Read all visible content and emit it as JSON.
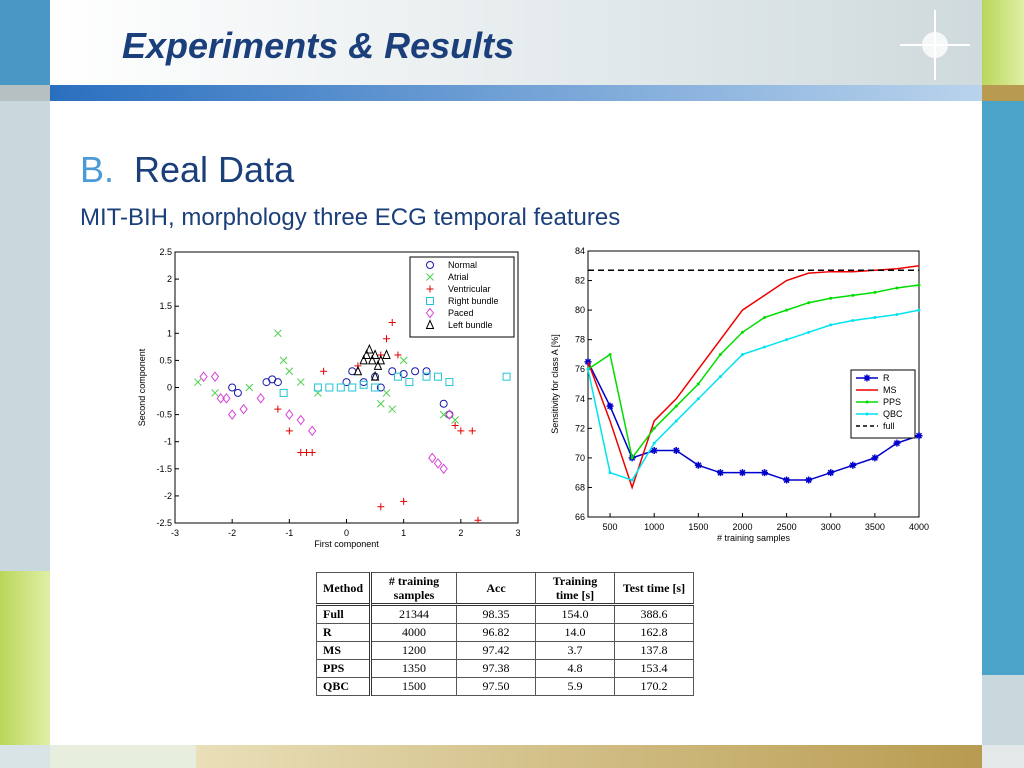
{
  "slide": {
    "title": "Experiments & Results",
    "section_number": "B.",
    "section_title": "Real Data",
    "subtitle": "MIT-BIH, morphology three ECG temporal features"
  },
  "chart_data": [
    {
      "type": "scatter",
      "x_label": "First component",
      "y_label": "Second component",
      "xlim": [
        -3,
        3
      ],
      "xticks": [
        -3,
        -2,
        -1,
        0,
        1,
        2,
        3
      ],
      "ylim": [
        -2.5,
        2.5
      ],
      "yticks": [
        2.5,
        2,
        1.5,
        1,
        0.5,
        0,
        -0.5,
        -1,
        -1.5,
        -2,
        -2.5
      ],
      "grid": false,
      "legend": "upper right",
      "series": [
        {
          "name": "Normal",
          "color": "#1a1aa8",
          "marker": "circle",
          "x": [
            -2.0,
            -1.9,
            -1.4,
            -1.3,
            -1.2,
            0,
            0.1,
            0.3,
            0.5,
            0.6,
            0.8,
            1.0,
            1.2,
            1.4,
            1.7,
            1.8
          ],
          "y": [
            0,
            -0.1,
            0.1,
            0.15,
            0.1,
            0.1,
            0.3,
            0.1,
            0.2,
            0,
            0.3,
            0.25,
            0.3,
            0.3,
            -0.3,
            -0.5
          ]
        },
        {
          "name": "Atrial",
          "color": "#4ccf4c",
          "marker": "x",
          "x": [
            -2.6,
            -2.3,
            -1.7,
            -1.2,
            -1.1,
            -1.0,
            -0.8,
            -0.5,
            0.6,
            0.7,
            0.8,
            1.0,
            1.7,
            1.9
          ],
          "y": [
            0.1,
            -0.1,
            0,
            1.0,
            0.5,
            0.3,
            0.1,
            -0.1,
            -0.3,
            -0.1,
            -0.4,
            0.5,
            -0.5,
            -0.6
          ]
        },
        {
          "name": "Ventricular",
          "color": "#e00000",
          "marker": "plus",
          "x": [
            -1.2,
            -1.0,
            -0.8,
            -0.7,
            -0.6,
            -0.4,
            0.2,
            0.6,
            0.7,
            0.8,
            0.9,
            0.6,
            1.0,
            1.9,
            2.0,
            2.2,
            2.3
          ],
          "y": [
            -0.4,
            -0.8,
            -1.2,
            -1.2,
            -1.2,
            0.3,
            0.4,
            0.6,
            0.9,
            1.2,
            0.6,
            -2.2,
            -2.1,
            -0.7,
            -0.8,
            -0.8,
            -2.45
          ]
        },
        {
          "name": "Right bundle",
          "color": "#22c4d4",
          "marker": "square",
          "x": [
            -1.1,
            -0.5,
            -0.3,
            -0.1,
            0.1,
            0.3,
            0.5,
            0.9,
            1.1,
            1.4,
            1.6,
            1.8,
            2.8
          ],
          "y": [
            -0.1,
            0,
            0,
            0,
            0,
            0.05,
            0,
            0.2,
            0.1,
            0.2,
            0.2,
            0.1,
            0.2
          ]
        },
        {
          "name": "Paced",
          "color": "#d844d8",
          "marker": "diamond",
          "x": [
            -2.5,
            -2.3,
            -2.2,
            -2.1,
            -2.0,
            -1.8,
            -1.5,
            -1.0,
            -0.8,
            -0.6,
            1.5,
            1.6,
            1.7,
            1.8
          ],
          "y": [
            0.2,
            0.2,
            -0.2,
            -0.2,
            -0.5,
            -0.4,
            -0.2,
            -0.5,
            -0.6,
            -0.8,
            -1.3,
            -1.4,
            -1.5,
            -0.5
          ]
        },
        {
          "name": "Left bundle",
          "color": "#000000",
          "marker": "triangle",
          "x": [
            0.2,
            0.3,
            0.35,
            0.4,
            0.45,
            0.5,
            0.55,
            0.6,
            0.7,
            0.5
          ],
          "y": [
            0.3,
            0.5,
            0.6,
            0.7,
            0.5,
            0.6,
            0.4,
            0.5,
            0.6,
            0.2
          ]
        }
      ]
    },
    {
      "type": "line",
      "x_label": "# training samples",
      "y_label": "Sensitivity for class A [%]",
      "xlim": [
        250,
        4000
      ],
      "xticks": [
        500,
        1000,
        1500,
        2000,
        2500,
        3000,
        3500,
        4000
      ],
      "ylim": [
        66,
        84
      ],
      "yticks": [
        66,
        68,
        70,
        72,
        74,
        76,
        78,
        80,
        82,
        84
      ],
      "grid": false,
      "legend": "center right",
      "x": [
        250,
        500,
        750,
        1000,
        1250,
        1500,
        1750,
        2000,
        2250,
        2500,
        2750,
        3000,
        3250,
        3500,
        3750,
        4000
      ],
      "series": [
        {
          "name": "R",
          "color": "#0000cc",
          "marker": "star",
          "style": "solid",
          "values": [
            76.5,
            73.5,
            70,
            70.5,
            70.5,
            69.5,
            69,
            69,
            69,
            68.5,
            68.5,
            69,
            69.5,
            70,
            71,
            71.5
          ]
        },
        {
          "name": "MS",
          "color": "#ee0000",
          "marker": "none",
          "style": "solid",
          "values": [
            76.5,
            72.5,
            68,
            72.5,
            74,
            76,
            78,
            80,
            81,
            82,
            82.5,
            82.6,
            82.6,
            82.7,
            82.8,
            83
          ]
        },
        {
          "name": "PPS",
          "color": "#00dd00",
          "marker": "dot",
          "style": "solid",
          "values": [
            76,
            77,
            70,
            72,
            73.5,
            75,
            77,
            78.5,
            79.5,
            80,
            80.5,
            80.8,
            81,
            81.2,
            81.5,
            81.7
          ]
        },
        {
          "name": "QBC",
          "color": "#00e4f0",
          "marker": "dot",
          "style": "solid",
          "values": [
            76,
            69,
            68.5,
            71,
            72.5,
            74,
            75.5,
            77,
            77.5,
            78,
            78.5,
            79,
            79.3,
            79.5,
            79.7,
            80
          ]
        },
        {
          "name": "full",
          "color": "#000000",
          "marker": "none",
          "style": "dashed",
          "values": [
            82.7,
            82.7,
            82.7,
            82.7,
            82.7,
            82.7,
            82.7,
            82.7,
            82.7,
            82.7,
            82.7,
            82.7,
            82.7,
            82.7,
            82.7,
            82.7
          ]
        }
      ]
    }
  ],
  "table": {
    "header": [
      "Method",
      "# training samples",
      "Acc",
      "Training time [s]",
      "Test time [s]"
    ],
    "rows": [
      [
        "Full",
        "21344",
        "98.35",
        "154.0",
        "388.6"
      ],
      [
        "R",
        "4000",
        "96.82",
        "14.0",
        "162.8"
      ],
      [
        "MS",
        "1200",
        "97.42",
        "3.7",
        "137.8"
      ],
      [
        "PPS",
        "1350",
        "97.38",
        "4.8",
        "153.4"
      ],
      [
        "QBC",
        "1500",
        "97.50",
        "5.9",
        "170.2"
      ]
    ]
  }
}
